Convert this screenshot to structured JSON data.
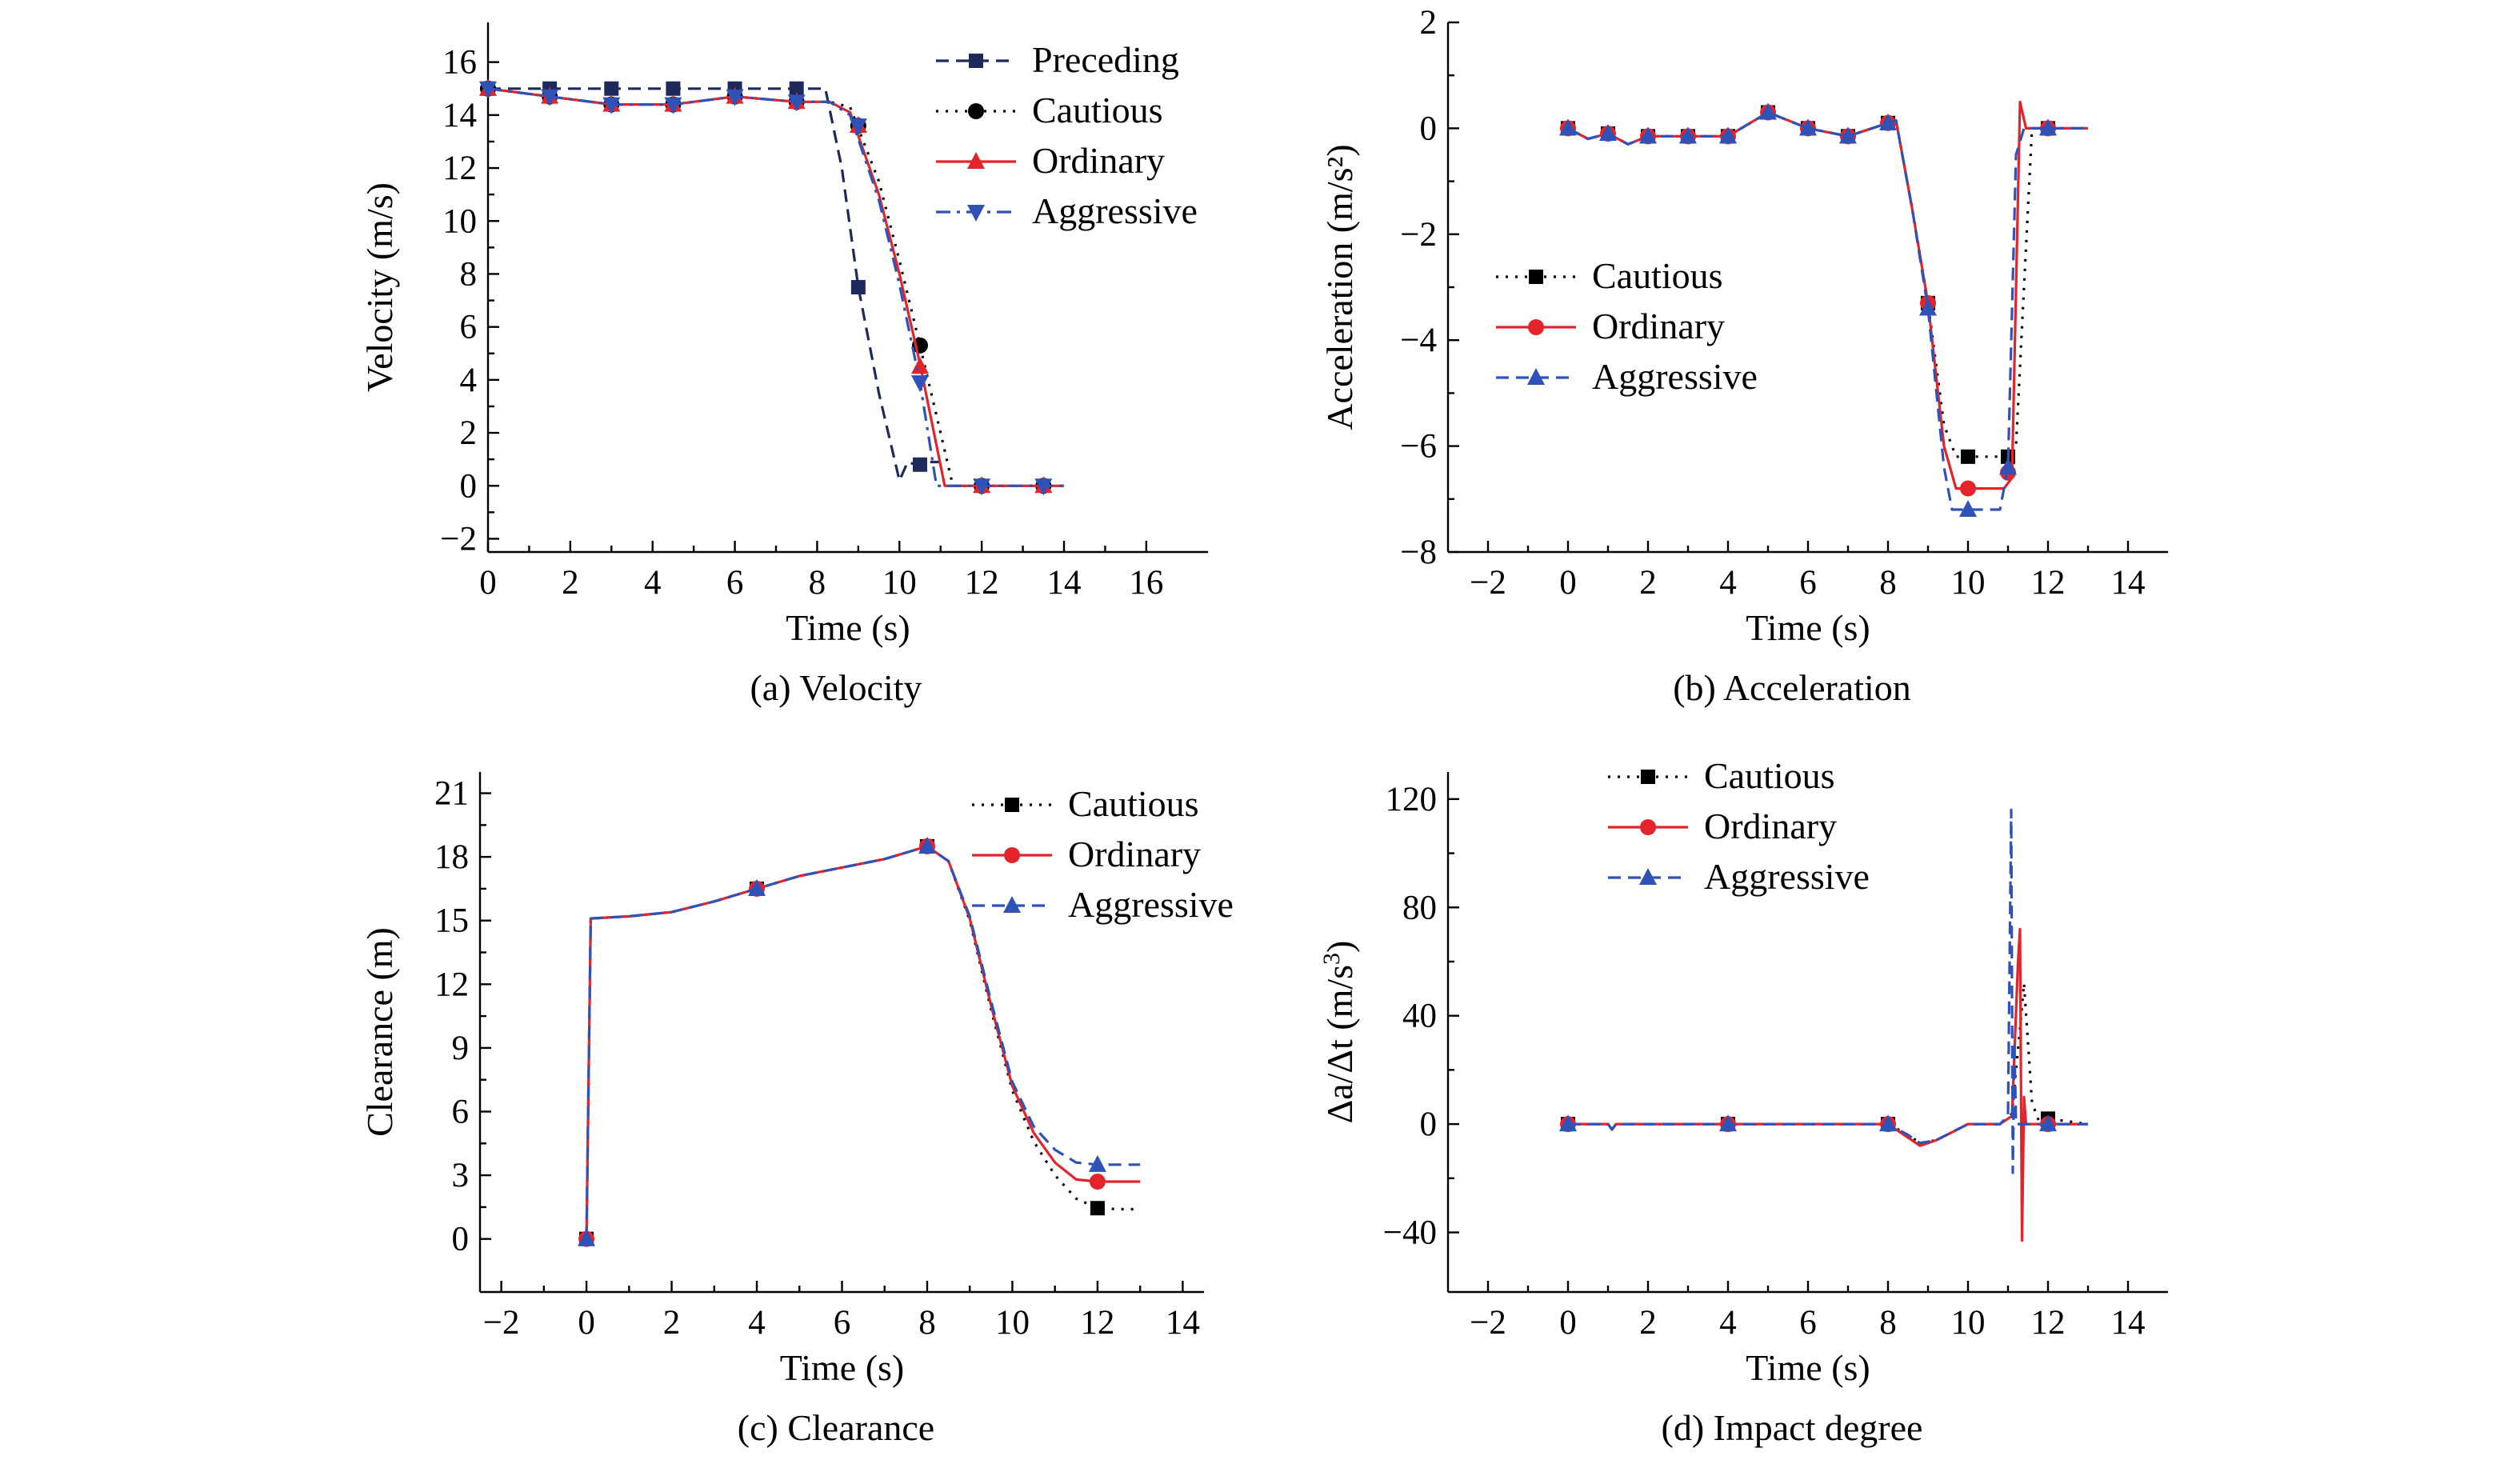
{
  "chart_data": [
    {
      "id": "velocity",
      "type": "line",
      "caption": "(a) Velocity",
      "xlabel": "Time (s)",
      "ylabel": "Velocity (m/s)",
      "xlim": [
        0,
        17.5
      ],
      "ylim": [
        -2.5,
        17.5
      ],
      "xticks": [
        0,
        2,
        4,
        6,
        8,
        10,
        12,
        14,
        16
      ],
      "yticks": [
        -2,
        0,
        2,
        4,
        6,
        8,
        10,
        12,
        14,
        16
      ],
      "legend": {
        "position": "top-right"
      },
      "series": [
        {
          "name": "Preceding",
          "color": "#1f2a5c",
          "dash": "dash",
          "marker": "square",
          "x": [
            0,
            1.5,
            3,
            4.5,
            6,
            7.5,
            8.2,
            8.6,
            9.0,
            9.5,
            10.0,
            10.2,
            10.4,
            10.6,
            11.0
          ],
          "y": [
            15,
            15,
            15,
            15,
            15,
            15,
            15,
            12.0,
            7.5,
            3.5,
            0.2,
            0.9,
            0.8,
            0.9,
            0.9
          ],
          "markers_x": [
            0,
            1.5,
            3,
            4.5,
            6,
            7.5,
            9.0,
            10.5
          ],
          "markers_y": [
            15,
            15,
            15,
            15,
            15,
            15,
            7.5,
            0.8
          ]
        },
        {
          "name": "Cautious",
          "color": "#000000",
          "dash": "dot",
          "marker": "circle",
          "x": [
            0,
            1.5,
            3,
            4.5,
            6,
            7.5,
            8.3,
            8.8,
            9.5,
            10.0,
            10.5,
            11.0,
            11.3,
            12,
            13.5,
            14
          ],
          "y": [
            15,
            14.7,
            14.4,
            14.4,
            14.7,
            14.5,
            14.5,
            14.3,
            11.5,
            8.5,
            5.3,
            2.0,
            0,
            0,
            0,
            0
          ],
          "markers_x": [
            0,
            1.5,
            3,
            4.5,
            6,
            7.5,
            9.0,
            10.5,
            12,
            13.5
          ],
          "markers_y": [
            15,
            14.7,
            14.4,
            14.4,
            14.7,
            14.5,
            13.6,
            5.3,
            0,
            0
          ]
        },
        {
          "name": "Ordinary",
          "color": "#e3242b",
          "dash": "solid",
          "marker": "triangle-up",
          "x": [
            0,
            1.5,
            3,
            4.5,
            6,
            7.5,
            8.3,
            8.8,
            9.5,
            10.0,
            10.5,
            11.1,
            12,
            13.5,
            14
          ],
          "y": [
            15,
            14.7,
            14.4,
            14.4,
            14.7,
            14.5,
            14.5,
            14.1,
            11.0,
            8.0,
            4.6,
            0,
            0,
            0,
            0
          ],
          "markers_x": [
            0,
            1.5,
            3,
            4.5,
            6,
            7.5,
            9.0,
            10.5,
            12,
            13.5
          ],
          "markers_y": [
            15,
            14.7,
            14.4,
            14.4,
            14.7,
            14.5,
            13.6,
            4.5,
            0,
            0
          ]
        },
        {
          "name": "Aggressive",
          "color": "#2f52b8",
          "dash": "dashdot",
          "marker": "triangle-down",
          "x": [
            0,
            1.5,
            3,
            4.5,
            6,
            7.5,
            8.3,
            8.8,
            9.5,
            10.0,
            10.5,
            10.9,
            12,
            13.5,
            14
          ],
          "y": [
            15,
            14.7,
            14.4,
            14.4,
            14.7,
            14.5,
            14.5,
            14.0,
            10.8,
            7.6,
            3.9,
            0,
            0,
            0,
            0
          ],
          "markers_x": [
            0,
            1.5,
            3,
            4.5,
            6,
            7.5,
            9.0,
            10.5,
            12,
            13.5
          ],
          "markers_y": [
            15,
            14.7,
            14.4,
            14.4,
            14.7,
            14.5,
            13.6,
            3.9,
            0,
            0
          ]
        }
      ]
    },
    {
      "id": "acceleration",
      "type": "line",
      "caption": "(b) Acceleration",
      "xlabel": "Time (s)",
      "ylabel": "Acceleration (m/s²)",
      "xlim": [
        -3,
        15
      ],
      "ylim": [
        -8,
        2
      ],
      "xticks": [
        -2,
        0,
        2,
        4,
        6,
        8,
        10,
        12,
        14
      ],
      "yticks": [
        -8,
        -6,
        -4,
        -2,
        0,
        2
      ],
      "legend": {
        "position": "center-left"
      },
      "series": [
        {
          "name": "Cautious",
          "color": "#000000",
          "dash": "dot",
          "marker": "square",
          "x": [
            0,
            0.5,
            1,
            1.5,
            2,
            3,
            4,
            5,
            6,
            7,
            8,
            8.2,
            8.6,
            9.0,
            9.4,
            9.7,
            10.0,
            10.5,
            11.0,
            11.2,
            11.4,
            11.6,
            12,
            13
          ],
          "y": [
            0,
            -0.2,
            -0.1,
            -0.3,
            -0.15,
            -0.15,
            -0.15,
            0.3,
            0,
            -0.15,
            0.1,
            0.15,
            -1.5,
            -3.3,
            -5.6,
            -6.2,
            -6.2,
            -6.2,
            -6.2,
            -6.0,
            -3.0,
            0,
            0,
            0
          ],
          "markers_x": [
            0,
            1,
            2,
            3,
            4,
            5,
            6,
            7,
            8,
            9,
            10,
            11,
            12
          ],
          "markers_y": [
            0,
            -0.1,
            -0.15,
            -0.15,
            -0.15,
            0.3,
            0,
            -0.15,
            0.1,
            -3.3,
            -6.2,
            -6.2,
            0
          ]
        },
        {
          "name": "Ordinary",
          "color": "#e3242b",
          "dash": "solid",
          "marker": "circle",
          "x": [
            0,
            0.5,
            1,
            1.5,
            2,
            3,
            4,
            5,
            6,
            7,
            8,
            8.2,
            8.6,
            9.0,
            9.4,
            9.7,
            10.0,
            10.5,
            10.9,
            11.1,
            11.3,
            11.45,
            12,
            13
          ],
          "y": [
            0,
            -0.2,
            -0.1,
            -0.3,
            -0.15,
            -0.15,
            -0.15,
            0.3,
            0,
            -0.15,
            0.1,
            0.15,
            -1.5,
            -3.3,
            -6.0,
            -6.8,
            -6.8,
            -6.8,
            -6.8,
            -6.6,
            0.5,
            0,
            0,
            0
          ],
          "markers_x": [
            0,
            1,
            2,
            3,
            4,
            5,
            6,
            7,
            8,
            9,
            10,
            11,
            12
          ],
          "markers_y": [
            0,
            -0.1,
            -0.15,
            -0.15,
            -0.15,
            0.3,
            0,
            -0.15,
            0.1,
            -3.3,
            -6.8,
            -6.5,
            0
          ]
        },
        {
          "name": "Aggressive",
          "color": "#2f52b8",
          "dash": "dash",
          "marker": "triangle-up",
          "x": [
            0,
            0.5,
            1,
            1.5,
            2,
            3,
            4,
            5,
            6,
            7,
            8,
            8.2,
            8.6,
            9.0,
            9.4,
            9.6,
            10.0,
            10.5,
            10.8,
            11.0,
            11.2,
            11.4,
            12,
            13
          ],
          "y": [
            0,
            -0.2,
            -0.1,
            -0.3,
            -0.15,
            -0.15,
            -0.15,
            0.3,
            0,
            -0.15,
            0.1,
            0.15,
            -1.5,
            -3.4,
            -6.4,
            -7.2,
            -7.2,
            -7.2,
            -7.2,
            -6.4,
            -0.5,
            0,
            0,
            0
          ],
          "markers_x": [
            0,
            1,
            2,
            3,
            4,
            5,
            6,
            7,
            8,
            9,
            10,
            11,
            12
          ],
          "markers_y": [
            0,
            -0.1,
            -0.15,
            -0.15,
            -0.15,
            0.3,
            0,
            -0.15,
            0.1,
            -3.4,
            -7.2,
            -6.4,
            0
          ]
        }
      ]
    },
    {
      "id": "clearance",
      "type": "line",
      "caption": "(c) Clearance",
      "xlabel": "Time (s)",
      "ylabel": "Clearance (m)",
      "xlim": [
        -2.5,
        14.5
      ],
      "ylim": [
        -2.5,
        22
      ],
      "xticks": [
        -2,
        0,
        2,
        4,
        6,
        8,
        10,
        12,
        14
      ],
      "yticks": [
        0,
        3,
        6,
        9,
        12,
        15,
        18,
        21
      ],
      "legend": {
        "position": "top-right"
      },
      "series": [
        {
          "name": "Cautious",
          "color": "#000000",
          "dash": "dot",
          "marker": "square",
          "x": [
            0,
            0.1,
            1,
            2,
            3,
            4,
            5,
            6,
            7,
            8,
            8.5,
            9,
            9.5,
            10,
            10.5,
            11,
            11.5,
            12,
            12.5,
            13
          ],
          "y": [
            0,
            15.1,
            15.2,
            15.4,
            15.9,
            16.5,
            17.1,
            17.5,
            17.9,
            18.5,
            17.8,
            15.0,
            10.8,
            7.0,
            4.6,
            3.0,
            1.9,
            1.45,
            1.4,
            1.4
          ],
          "markers_x": [
            0,
            4,
            8,
            12
          ],
          "markers_y": [
            0,
            16.5,
            18.5,
            1.45
          ]
        },
        {
          "name": "Ordinary",
          "color": "#e3242b",
          "dash": "solid",
          "marker": "circle",
          "x": [
            0,
            0.1,
            1,
            2,
            3,
            4,
            5,
            6,
            7,
            8,
            8.5,
            9,
            9.5,
            10,
            10.5,
            11,
            11.5,
            12,
            12.5,
            13
          ],
          "y": [
            0,
            15.1,
            15.2,
            15.4,
            15.9,
            16.5,
            17.1,
            17.5,
            17.9,
            18.5,
            17.8,
            15.1,
            11.0,
            7.2,
            5.0,
            3.6,
            2.8,
            2.7,
            2.7,
            2.7
          ],
          "markers_x": [
            0,
            4,
            8,
            12
          ],
          "markers_y": [
            0,
            16.5,
            18.5,
            2.7
          ]
        },
        {
          "name": "Aggressive",
          "color": "#2f52b8",
          "dash": "dash",
          "marker": "triangle-up",
          "x": [
            0,
            0.1,
            1,
            2,
            3,
            4,
            5,
            6,
            7,
            8,
            8.5,
            9,
            9.5,
            10,
            10.5,
            11,
            11.5,
            12,
            12.5,
            13
          ],
          "y": [
            0,
            15.1,
            15.2,
            15.4,
            15.9,
            16.5,
            17.1,
            17.5,
            17.9,
            18.5,
            17.8,
            15.2,
            11.2,
            7.4,
            5.3,
            4.2,
            3.6,
            3.5,
            3.5,
            3.5
          ],
          "markers_x": [
            0,
            4,
            8,
            12
          ],
          "markers_y": [
            0,
            16.5,
            18.5,
            3.5
          ]
        }
      ]
    },
    {
      "id": "impact",
      "type": "line",
      "caption": "(d) Impact degree",
      "xlabel": "Time (s)",
      "ylabel_main": "Δa/Δt (m/s",
      "ylabel_sup": "3",
      "ylabel_close": ")",
      "xlim": [
        -3,
        15
      ],
      "ylim": [
        -62,
        130
      ],
      "xticks": [
        -2,
        0,
        2,
        4,
        6,
        8,
        10,
        12,
        14
      ],
      "yticks": [
        -40,
        0,
        40,
        80,
        120
      ],
      "legend": {
        "position": "top-left"
      },
      "series": [
        {
          "name": "Cautious",
          "color": "#000000",
          "dash": "dot",
          "marker": "square",
          "x": [
            0,
            1,
            1.1,
            1.2,
            2,
            3,
            4,
            5,
            6,
            7,
            8,
            8.5,
            8.8,
            9.2,
            9.6,
            10,
            10.8,
            11.0,
            11.1,
            11.2,
            11.3,
            11.4,
            11.5,
            11.6,
            11.8,
            12,
            13
          ],
          "y": [
            0,
            0,
            -2,
            0,
            0,
            0,
            0,
            0,
            0,
            0,
            0,
            -4,
            -7,
            -6,
            -3,
            0,
            0,
            2,
            4,
            20,
            35,
            52,
            30,
            8,
            0,
            2,
            0
          ],
          "markers_x": [
            0,
            4,
            8,
            12
          ],
          "markers_y": [
            0,
            0,
            0,
            2
          ]
        },
        {
          "name": "Ordinary",
          "color": "#e3242b",
          "dash": "solid",
          "marker": "circle",
          "x": [
            0,
            1,
            1.1,
            1.2,
            2,
            3,
            4,
            5,
            6,
            7,
            8,
            8.5,
            8.8,
            9.2,
            9.6,
            10,
            10.8,
            11.1,
            11.25,
            11.3,
            11.35,
            11.4,
            11.45,
            11.5,
            12,
            13
          ],
          "y": [
            0,
            0,
            -2,
            0,
            0,
            0,
            0,
            0,
            0,
            0,
            0,
            -5,
            -8,
            -6,
            -3,
            0,
            0,
            3,
            60,
            72,
            -43,
            10,
            0,
            0,
            0,
            0
          ],
          "markers_x": [
            0,
            4,
            8,
            12
          ],
          "markers_y": [
            0,
            0,
            0,
            0
          ]
        },
        {
          "name": "Aggressive",
          "color": "#2f52b8",
          "dash": "dash",
          "marker": "triangle-up",
          "x": [
            0,
            1,
            1.1,
            1.2,
            2,
            3,
            4,
            5,
            6,
            7,
            8,
            8.5,
            8.8,
            9.2,
            9.6,
            10,
            10.8,
            11.0,
            11.08,
            11.12,
            11.16,
            11.2,
            11.3,
            12,
            13
          ],
          "y": [
            0,
            0,
            -2,
            0,
            0,
            0,
            0,
            0,
            0,
            0,
            0,
            -4,
            -7,
            -6,
            -3,
            0,
            0,
            3,
            116,
            -18,
            30,
            0,
            0,
            0,
            0
          ],
          "markers_x": [
            0,
            4,
            8,
            12
          ],
          "markers_y": [
            0,
            0,
            0,
            0
          ]
        }
      ]
    }
  ]
}
